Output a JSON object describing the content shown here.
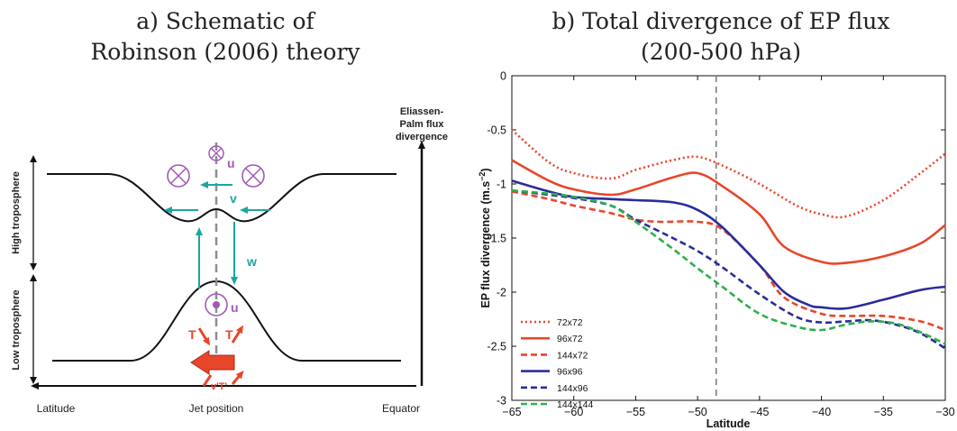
{
  "left_panel": {
    "title_line1": "a) Schematic of",
    "title_line2": "Robinson (2006) theory",
    "ylabel_high": "High troposphere",
    "ylabel_low": "Low troposphere",
    "xaxis_left": "Latitude",
    "xaxis_mid": "Jet position",
    "xaxis_right": "Equator",
    "ep_label_line1": "Eliassen-",
    "ep_label_line2": "Palm flux",
    "ep_label_line3": "divergence",
    "sym_u_top": "u",
    "sym_v": "v",
    "sym_w": "w",
    "sym_u_low": "u",
    "sym_T_left": "T",
    "sym_T_right": "T",
    "sym_vT": "v'T'",
    "colors": {
      "purple": "#a05ab4",
      "teal": "#1aa6a0",
      "red": "#e8462a"
    }
  },
  "chart_data": {
    "type": "line",
    "title_line1": "b) Total divergence of EP flux",
    "title_line2": "(200-500 hPa)",
    "xlabel": "Latitude",
    "ylabel": "EP flux divergence (m.s",
    "ylabel_sup": "−2",
    "ylabel_end": ")",
    "xlim": [
      -65,
      -30
    ],
    "ylim": [
      -3,
      0
    ],
    "xticks": [
      -65,
      -60,
      -55,
      -50,
      -45,
      -40,
      -35,
      -30
    ],
    "yticks": [
      0,
      -0.5,
      -1,
      -1.5,
      -2,
      -2.5,
      -3
    ],
    "xtick_labels": [
      "−65",
      "−60",
      "−55",
      "−50",
      "−45",
      "−40",
      "−35",
      "−30"
    ],
    "ytick_labels": [
      "0",
      "-0.5",
      "-1",
      "-1.5",
      "-2",
      "-2.5",
      "-3"
    ],
    "vline_x": -48.5,
    "legend_position": "bottom-left",
    "series": [
      {
        "name": "72x72",
        "color": "#e8462a",
        "style": "dotted",
        "x": [
          -65,
          -62,
          -60,
          -57,
          -55,
          -52,
          -50,
          -48,
          -45,
          -42,
          -40,
          -38,
          -35,
          -32,
          -30
        ],
        "y": [
          -0.5,
          -0.8,
          -0.9,
          -0.95,
          -0.87,
          -0.78,
          -0.75,
          -0.83,
          -1.0,
          -1.2,
          -1.28,
          -1.3,
          -1.15,
          -0.9,
          -0.72
        ]
      },
      {
        "name": "96x72",
        "color": "#e8462a",
        "style": "solid",
        "x": [
          -65,
          -62,
          -60,
          -57,
          -55,
          -52,
          -50,
          -48,
          -45,
          -43,
          -40,
          -38,
          -35,
          -32,
          -30
        ],
        "y": [
          -0.78,
          -0.97,
          -1.05,
          -1.1,
          -1.05,
          -0.94,
          -0.9,
          -1.02,
          -1.28,
          -1.58,
          -1.72,
          -1.73,
          -1.67,
          -1.55,
          -1.38
        ]
      },
      {
        "name": "144x72",
        "color": "#e8462a",
        "style": "dashed",
        "x": [
          -65,
          -62,
          -60,
          -57,
          -55,
          -53,
          -50,
          -48,
          -45,
          -43,
          -40,
          -38,
          -35,
          -32,
          -30
        ],
        "y": [
          -1.07,
          -1.14,
          -1.2,
          -1.27,
          -1.33,
          -1.35,
          -1.35,
          -1.42,
          -1.75,
          -2.05,
          -2.2,
          -2.22,
          -2.22,
          -2.27,
          -2.35
        ]
      },
      {
        "name": "96x96",
        "color": "#2a2c9a",
        "style": "solid",
        "x": [
          -65,
          -62,
          -60,
          -57,
          -55,
          -52,
          -50,
          -48,
          -45,
          -43,
          -41,
          -40,
          -38,
          -35,
          -32,
          -30
        ],
        "y": [
          -0.97,
          -1.07,
          -1.12,
          -1.14,
          -1.15,
          -1.17,
          -1.24,
          -1.4,
          -1.75,
          -2.0,
          -2.12,
          -2.14,
          -2.15,
          -2.07,
          -1.98,
          -1.95
        ]
      },
      {
        "name": "144x96",
        "color": "#2a2c9a",
        "style": "dashed",
        "x": [
          -65,
          -62,
          -60,
          -57,
          -55,
          -52,
          -50,
          -48,
          -45,
          -42,
          -40,
          -38,
          -36,
          -34,
          -32,
          -30
        ],
        "y": [
          -1.06,
          -1.1,
          -1.13,
          -1.2,
          -1.33,
          -1.5,
          -1.62,
          -1.77,
          -2.02,
          -2.23,
          -2.28,
          -2.27,
          -2.26,
          -2.3,
          -2.38,
          -2.52
        ]
      },
      {
        "name": "144x144",
        "color": "#2db04a",
        "style": "dashed",
        "x": [
          -65,
          -62,
          -60,
          -57,
          -55,
          -52,
          -50,
          -48,
          -45,
          -42,
          -40,
          -38,
          -36,
          -34,
          -32,
          -30
        ],
        "y": [
          -1.06,
          -1.09,
          -1.12,
          -1.2,
          -1.35,
          -1.6,
          -1.78,
          -1.95,
          -2.2,
          -2.32,
          -2.35,
          -2.3,
          -2.27,
          -2.29,
          -2.37,
          -2.48
        ]
      }
    ]
  }
}
